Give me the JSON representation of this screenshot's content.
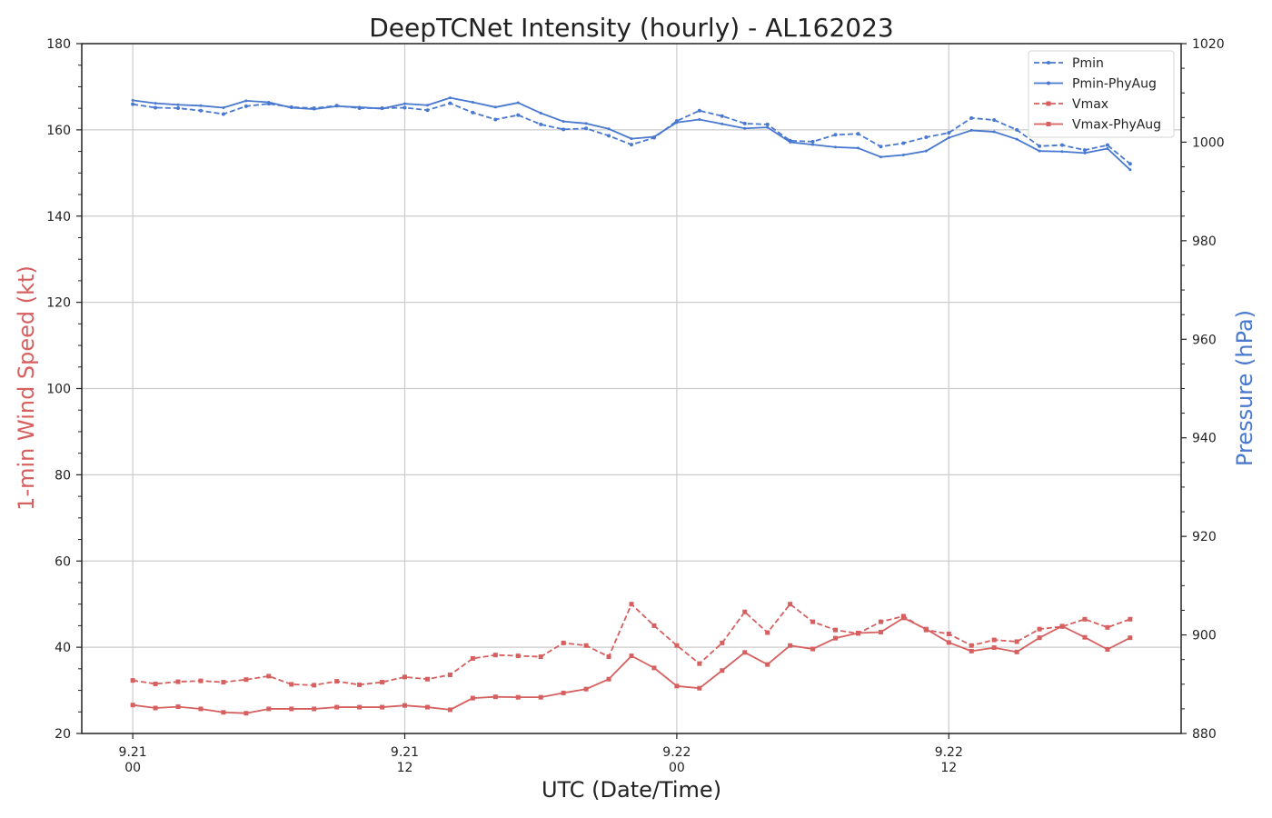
{
  "chart_data": {
    "type": "line",
    "title": "DeepTCNet Intensity (hourly) - AL162023",
    "xlabel": "UTC (Date/Time)",
    "ylabel_left": "1-min Wind Speed (kt)",
    "ylabel_right": "Pressure (hPa)",
    "ylim_left": [
      20,
      180
    ],
    "ylim_right": [
      880,
      1020
    ],
    "xlim_hours": [
      -2.25,
      46.25
    ],
    "left_ticks": [
      "20",
      "40",
      "60",
      "80",
      "100",
      "120",
      "140",
      "160",
      "180"
    ],
    "right_ticks": [
      "880",
      "900",
      "920",
      "940",
      "960",
      "980",
      "1000",
      "1020"
    ],
    "x_ticks": [
      {
        "hour": 0,
        "line1": "9.21",
        "line2": "00"
      },
      {
        "hour": 12,
        "line1": "9.21",
        "line2": "12"
      },
      {
        "hour": 24,
        "line1": "9.22",
        "line2": "00"
      },
      {
        "hour": 36,
        "line1": "9.22",
        "line2": "12"
      }
    ],
    "grid": true,
    "legend_position": "top-right",
    "colors": {
      "pressure": "#4878cf",
      "wind": "#d65f5f",
      "grid": "#cccccc",
      "axis": "#222222"
    },
    "x": [
      0,
      1,
      2,
      3,
      4,
      5,
      6,
      7,
      8,
      9,
      10,
      11,
      12,
      13,
      14,
      15,
      16,
      17,
      18,
      19,
      20,
      21,
      22,
      23,
      24,
      25,
      26,
      27,
      28,
      29,
      30,
      31,
      32,
      33,
      34,
      35,
      36,
      37,
      38,
      39,
      40,
      41,
      42,
      43,
      44
    ],
    "series": [
      {
        "name": "Pmin",
        "axis": "right",
        "style": "dashed",
        "marker": "dot",
        "values": [
          1007.7,
          1007.0,
          1006.9,
          1006.4,
          1005.7,
          1007.3,
          1007.8,
          1007.1,
          1006.9,
          1007.4,
          1006.9,
          1006.9,
          1007.0,
          1006.5,
          1007.9,
          1006.0,
          1004.6,
          1005.5,
          1003.6,
          1002.6,
          1002.8,
          1001.3,
          999.5,
          1000.9,
          1004.3,
          1006.4,
          1005.3,
          1003.8,
          1003.6,
          1000.3,
          1000.1,
          1001.5,
          1001.7,
          999.1,
          999.8,
          1001.0,
          1001.9,
          1004.9,
          1004.5,
          1002.5,
          999.2,
          999.4,
          998.4,
          999.4,
          995.6
        ]
      },
      {
        "name": "Pmin-PhyAug",
        "axis": "right",
        "style": "solid",
        "marker": "small-dot",
        "values": [
          1008.5,
          1007.9,
          1007.6,
          1007.4,
          1007.0,
          1008.4,
          1008.1,
          1007.0,
          1006.7,
          1007.3,
          1007.1,
          1006.8,
          1007.8,
          1007.5,
          1009.0,
          1008.1,
          1007.1,
          1008.0,
          1005.9,
          1004.2,
          1003.8,
          1002.7,
          1000.7,
          1001.1,
          1004.0,
          1004.6,
          1003.7,
          1002.8,
          1003.0,
          1000.0,
          999.5,
          999.0,
          998.8,
          997.0,
          997.4,
          998.2,
          1000.9,
          1002.4,
          1002.1,
          1000.6,
          998.2,
          998.1,
          997.8,
          998.7,
          994.4
        ]
      },
      {
        "name": "Vmax",
        "axis": "left",
        "style": "dashed",
        "marker": "square",
        "values": [
          32.3,
          31.5,
          32.0,
          32.2,
          31.9,
          32.5,
          33.3,
          31.4,
          31.2,
          32.1,
          31.3,
          31.9,
          33.1,
          32.6,
          33.6,
          37.4,
          38.2,
          38.0,
          37.8,
          41.0,
          40.4,
          37.8,
          50.0,
          45.0,
          40.4,
          36.2,
          41.0,
          48.2,
          43.4,
          50.0,
          45.9,
          44.0,
          43.2,
          45.9,
          47.2,
          44.0,
          43.1,
          40.4,
          41.7,
          41.3,
          44.2,
          44.8,
          46.5,
          44.6,
          46.5
        ]
      },
      {
        "name": "Vmax-PhyAug",
        "axis": "left",
        "style": "solid",
        "marker": "square",
        "values": [
          26.6,
          25.9,
          26.2,
          25.7,
          24.9,
          24.7,
          25.7,
          25.7,
          25.7,
          26.1,
          26.1,
          26.1,
          26.5,
          26.1,
          25.5,
          28.2,
          28.5,
          28.4,
          28.4,
          29.4,
          30.3,
          32.6,
          38.0,
          35.2,
          31.0,
          30.5,
          34.6,
          38.8,
          36.0,
          40.4,
          39.6,
          42.1,
          43.3,
          43.5,
          46.8,
          44.2,
          41.1,
          39.1,
          39.9,
          38.9,
          42.2,
          44.9,
          42.3,
          39.5,
          42.2
        ]
      }
    ]
  }
}
